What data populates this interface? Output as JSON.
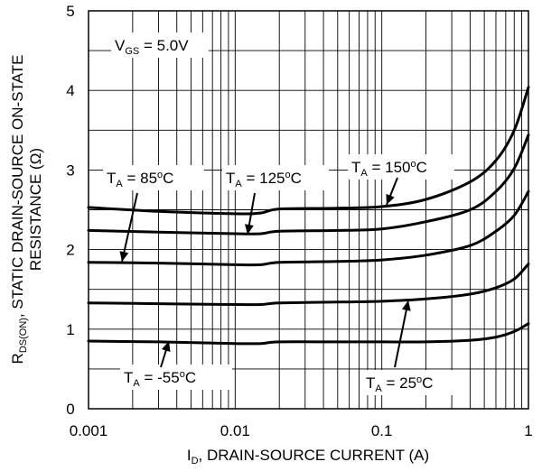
{
  "chart_data": {
    "type": "line",
    "x_scale": "log",
    "xlim": [
      0.001,
      1
    ],
    "ylim": [
      0,
      5
    ],
    "grid": true,
    "x_ticks": [
      "0.001",
      "0.01",
      "0.1",
      "1"
    ],
    "y_ticks": [
      "0",
      "1",
      "2",
      "3",
      "4",
      "5"
    ],
    "xlabel": {
      "main": "I",
      "sub": "D",
      "rest": ", DRAIN-SOURCE CURRENT (A)"
    },
    "ylabel": {
      "line1_pre": "R",
      "line1_sub": "DS(ON)",
      "line1_rest": ", STATIC DRAIN-SOURCE ON-STATE",
      "line2": "RESISTANCE (Ω)"
    },
    "vgs_label": {
      "main": "V",
      "sub": "GS",
      "rest": " = 5.0V"
    },
    "series": [
      {
        "name": "T_A = -55°C",
        "label_temp": " = -55",
        "unit": "C",
        "x": [
          0.001,
          0.003,
          0.01,
          0.015,
          0.02,
          0.05,
          0.1,
          0.2,
          0.4,
          0.6,
          0.8,
          1.0
        ],
        "y": [
          0.85,
          0.84,
          0.82,
          0.82,
          0.84,
          0.84,
          0.84,
          0.84,
          0.86,
          0.9,
          0.97,
          1.07
        ]
      },
      {
        "name": "T_A = 25°C",
        "label_temp": " = 25",
        "unit": "C",
        "x": [
          0.001,
          0.003,
          0.01,
          0.015,
          0.02,
          0.05,
          0.1,
          0.2,
          0.4,
          0.6,
          0.8,
          1.0
        ],
        "y": [
          1.33,
          1.32,
          1.31,
          1.31,
          1.33,
          1.34,
          1.35,
          1.38,
          1.44,
          1.52,
          1.63,
          1.82
        ]
      },
      {
        "name": "T_A = 85°C",
        "label_temp": " = 85",
        "unit": "C",
        "x": [
          0.001,
          0.003,
          0.01,
          0.015,
          0.02,
          0.05,
          0.1,
          0.2,
          0.4,
          0.6,
          0.8,
          1.0
        ],
        "y": [
          1.84,
          1.83,
          1.81,
          1.81,
          1.84,
          1.85,
          1.87,
          1.93,
          2.05,
          2.23,
          2.43,
          2.73
        ]
      },
      {
        "name": "T_A = 125°C",
        "label_temp": " = 125",
        "unit": "C",
        "x": [
          0.001,
          0.003,
          0.01,
          0.015,
          0.02,
          0.05,
          0.1,
          0.2,
          0.4,
          0.6,
          0.8,
          1.0
        ],
        "y": [
          2.24,
          2.22,
          2.2,
          2.2,
          2.23,
          2.24,
          2.26,
          2.35,
          2.5,
          2.73,
          3.02,
          3.44
        ]
      },
      {
        "name": "T_A = 150°C",
        "label_temp": " = 150",
        "unit": "C",
        "x": [
          0.001,
          0.003,
          0.01,
          0.015,
          0.02,
          0.05,
          0.1,
          0.2,
          0.4,
          0.6,
          0.8,
          1.0
        ],
        "y": [
          2.53,
          2.48,
          2.45,
          2.46,
          2.51,
          2.52,
          2.54,
          2.63,
          2.85,
          3.12,
          3.5,
          4.04
        ]
      }
    ],
    "annotation_prefix": {
      "main": "T",
      "sub": "A",
      "deg": "o"
    }
  }
}
